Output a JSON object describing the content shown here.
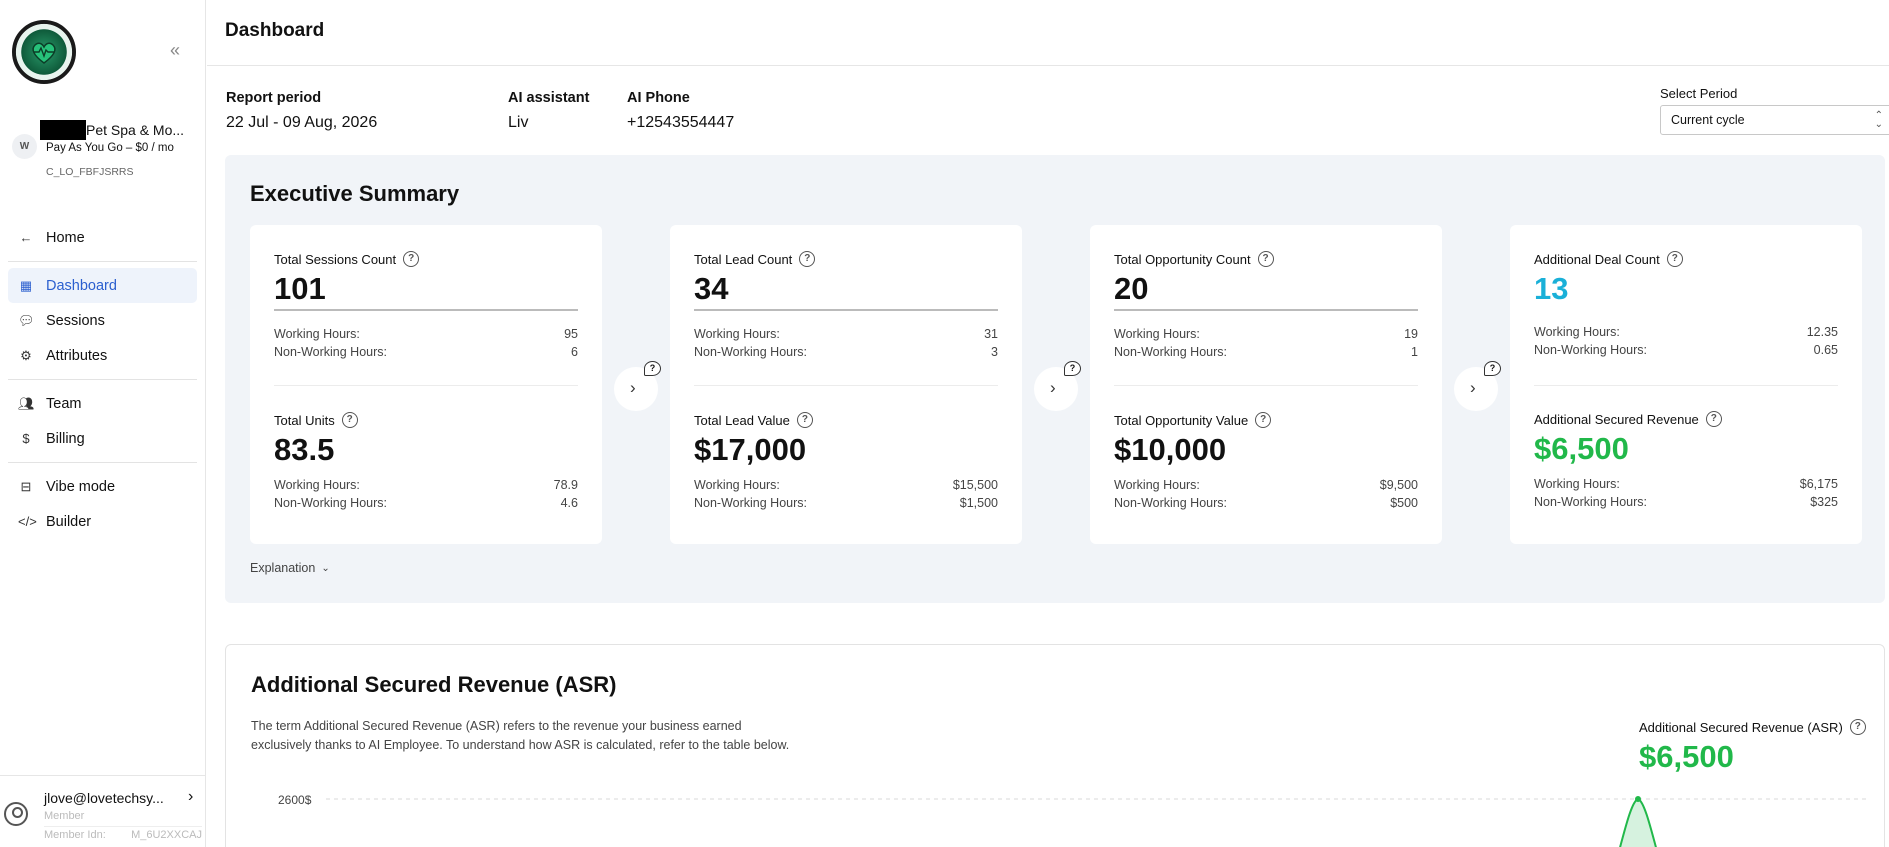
{
  "sidebar": {
    "account": {
      "avatar_initial": "W",
      "name": "Pet Spa & Mo...",
      "plan": "Pay As You Go – $0 / mo",
      "id": "C_LO_FBFJSRRS"
    },
    "nav": [
      {
        "label": "Home",
        "icon": "arrow-left-icon"
      },
      {
        "label": "Dashboard",
        "icon": "dashboard-grid-icon",
        "active": true
      },
      {
        "label": "Sessions",
        "icon": "chat-bubbles-icon"
      },
      {
        "label": "Attributes",
        "icon": "gear-icon"
      },
      {
        "label": "Team",
        "icon": "users-icon"
      },
      {
        "label": "Billing",
        "icon": "dollar-icon"
      },
      {
        "label": "Vibe mode",
        "icon": "robot-icon"
      },
      {
        "label": "Builder",
        "icon": "code-icon"
      }
    ],
    "user": {
      "email": "jlove@lovetechsy...",
      "role": "Member",
      "member_id_label": "Member Idn:",
      "member_id": "M_6U2XXCAJ"
    }
  },
  "header": {
    "title": "Dashboard"
  },
  "meta": {
    "report_period_label": "Report period",
    "report_period_value": "22 Jul - 09 Aug, 2026",
    "ai_assistant_label": "AI assistant",
    "ai_assistant_value": "Liv",
    "ai_phone_label": "AI Phone",
    "ai_phone_value": "+12543554447"
  },
  "period": {
    "label": "Select Period",
    "value": "Current cycle"
  },
  "executive_summary": {
    "title": "Executive Summary",
    "cards": [
      {
        "top": {
          "label": "Total Sessions Count",
          "value": "101",
          "working": "95",
          "non_working": "6"
        },
        "bottom": {
          "label": "Total Units",
          "value": "83.5",
          "working": "78.9",
          "non_working": "4.6"
        }
      },
      {
        "top": {
          "label": "Total Lead Count",
          "value": "34",
          "working": "31",
          "non_working": "3"
        },
        "bottom": {
          "label": "Total Lead Value",
          "value": "$17,000",
          "working": "$15,500",
          "non_working": "$1,500"
        }
      },
      {
        "top": {
          "label": "Total Opportunity Count",
          "value": "20",
          "working": "19",
          "non_working": "1"
        },
        "bottom": {
          "label": "Total Opportunity Value",
          "value": "$10,000",
          "working": "$9,500",
          "non_working": "$500"
        }
      },
      {
        "top": {
          "label": "Additional Deal Count",
          "value": "13",
          "working": "12.35",
          "non_working": "0.65"
        },
        "bottom": {
          "label": "Additional Secured Revenue",
          "value": "$6,500",
          "working": "$6,175",
          "non_working": "$325"
        }
      }
    ],
    "working_label": "Working Hours:",
    "non_working_label": "Non-Working Hours:",
    "explanation_label": "Explanation"
  },
  "asr": {
    "title": "Additional Secured Revenue (ASR)",
    "description": "The term Additional Secured Revenue (ASR) refers to the revenue your business earned exclusively thanks to AI Employee. To understand how ASR is calculated, refer to the table below.",
    "kpi_label": "Additional Secured Revenue (ASR)",
    "kpi_value": "$6,500",
    "y_tick": "2600$"
  },
  "colors": {
    "accent": "#2b5fcf",
    "cyan": "#1ab0d8",
    "green": "#21b84a",
    "panel": "#f1f4f8"
  }
}
